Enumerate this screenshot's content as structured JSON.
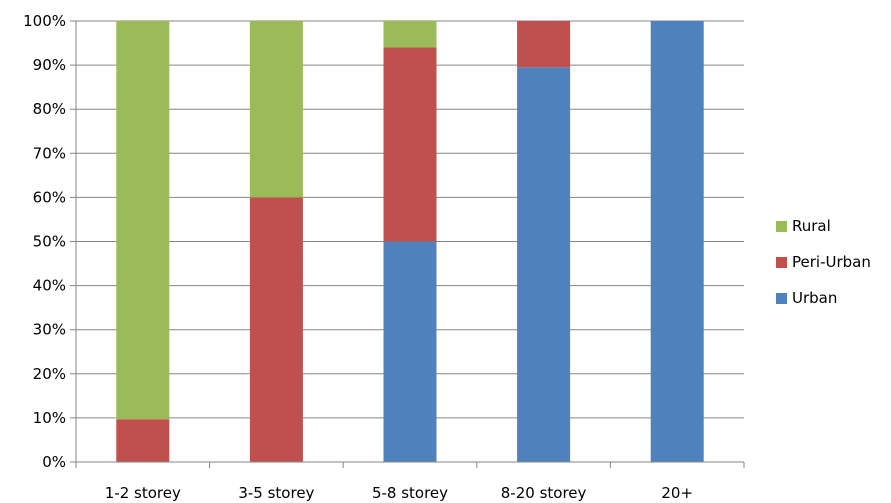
{
  "chart_data": {
    "type": "bar",
    "stacked": true,
    "percent": true,
    "categories": [
      "1-2 storey",
      "3-5 storey",
      "5-8 storey",
      "8-20 storey",
      "20+"
    ],
    "series": [
      {
        "name": "Urban",
        "color": "#4F81BD",
        "values": [
          0,
          0,
          50,
          89.5,
          100
        ]
      },
      {
        "name": "Peri-Urban",
        "color": "#C0504D",
        "values": [
          9.7,
          60,
          44,
          10.5,
          0
        ]
      },
      {
        "name": "Rural",
        "color": "#9BBB59",
        "values": [
          90.3,
          40,
          6,
          0,
          0
        ]
      }
    ],
    "y_ticks": [
      "0%",
      "10%",
      "20%",
      "30%",
      "40%",
      "50%",
      "60%",
      "70%",
      "80%",
      "90%",
      "100%"
    ],
    "ylim": [
      0,
      100
    ],
    "grid": true,
    "legend_position": "right",
    "legend_order": [
      "Rural",
      "Peri-Urban",
      "Urban"
    ]
  }
}
